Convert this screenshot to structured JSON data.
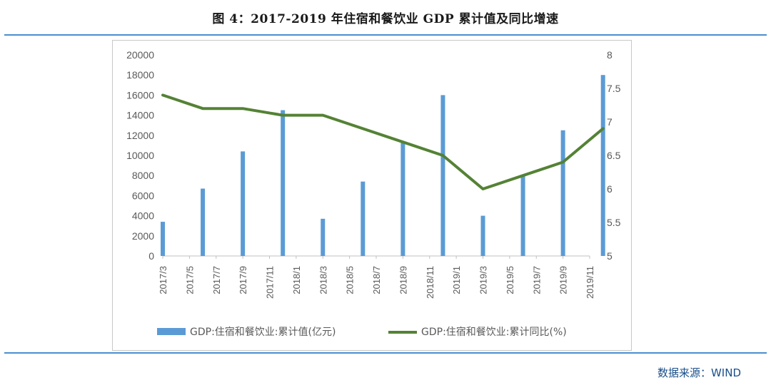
{
  "figure": {
    "title": "图 4：2017-2019 年住宿和餐饮业 GDP 累计值及同比增速",
    "source": "数据来源：WIND"
  },
  "colors": {
    "bar": "#5b9bd5",
    "line": "#548235",
    "rule": "#4b8fcf",
    "source_text": "#1a4f8b"
  },
  "chart_data": {
    "type": "bar+line",
    "title": "",
    "categories": [
      "2017/3",
      "2017/5",
      "2017/7",
      "2017/9",
      "2017/11",
      "2018/1",
      "2018/3",
      "2018/5",
      "2018/7",
      "2018/9",
      "2018/11",
      "2019/1",
      "2019/3",
      "2019/5",
      "2019/7",
      "2019/9",
      "2019/11"
    ],
    "y_left": {
      "min": 0,
      "max": 20000,
      "ticks": [
        "0",
        "2000",
        "4000",
        "6000",
        "8000",
        "10000",
        "12000",
        "14000",
        "16000",
        "18000",
        "20000"
      ]
    },
    "y_right": {
      "min": 5,
      "max": 8,
      "ticks": [
        "5",
        "5.5",
        "6",
        "6.5",
        "7",
        "7.5",
        "8"
      ]
    },
    "grid": false,
    "legend_position": "bottom",
    "series": [
      {
        "name": "GDP:住宿和餐饮业:累计值(亿元)",
        "type": "bar",
        "axis": "left",
        "x": [
          "2017/3",
          "2017/6",
          "2017/9",
          "2017/12",
          "2018/3",
          "2018/6",
          "2018/9",
          "2018/12",
          "2019/3",
          "2019/6",
          "2019/9",
          "2019/12"
        ],
        "values": [
          3400,
          6700,
          10400,
          14500,
          3700,
          7400,
          11300,
          16000,
          4000,
          8000,
          12500,
          18000
        ]
      },
      {
        "name": "GDP:住宿和餐饮业:累计同比(%)",
        "type": "line",
        "axis": "right",
        "x": [
          "2017/3",
          "2017/6",
          "2017/9",
          "2017/12",
          "2018/3",
          "2018/6",
          "2018/9",
          "2018/12",
          "2019/3",
          "2019/6",
          "2019/9",
          "2019/12"
        ],
        "values": [
          7.4,
          7.2,
          7.2,
          7.1,
          7.1,
          6.9,
          6.7,
          6.5,
          6.0,
          6.2,
          6.4,
          6.9
        ]
      }
    ]
  }
}
